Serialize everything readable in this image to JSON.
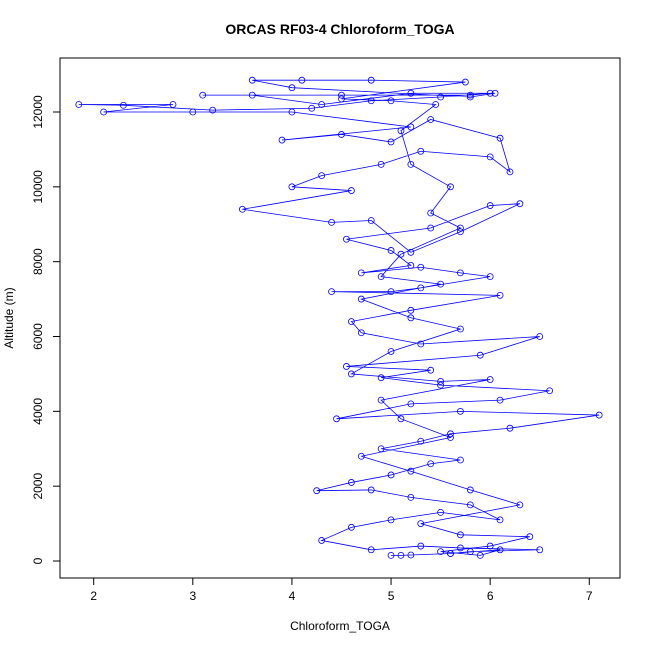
{
  "chart_data": {
    "type": "line",
    "title": "ORCAS RF03-4 Chloroform_TOGA",
    "x_label": "Chloroform_TOGA",
    "y_label": "Altitude (m)",
    "color": "#0000ff",
    "xlim": [
      1.66,
      7.31
    ],
    "ylim": [
      -454,
      13443
    ],
    "xticks": [
      2,
      3,
      4,
      5,
      6,
      7
    ],
    "yticks": [
      0,
      2000,
      4000,
      6000,
      8000,
      10000,
      12000
    ],
    "x": [
      5.0,
      5.1,
      5.2,
      5.6,
      5.8,
      6.5,
      5.7,
      5.3,
      4.8,
      4.3,
      4.6,
      5.0,
      5.5,
      6.1,
      5.8,
      5.2,
      4.8,
      4.25,
      4.6,
      5.0,
      5.4,
      5.7,
      4.9,
      5.3,
      5.6,
      6.2,
      7.1,
      5.7,
      4.45,
      5.2,
      6.1,
      6.6,
      5.5,
      4.9,
      5.4,
      4.55,
      5.9,
      6.5,
      5.3,
      4.7,
      4.6,
      5.2,
      6.1,
      4.4,
      5.0,
      5.3,
      6.0,
      5.7,
      5.3,
      4.7,
      5.2,
      5.0,
      4.55,
      5.4,
      6.0,
      6.3,
      5.7,
      5.2,
      4.8,
      4.4,
      3.5,
      4.6,
      4.0,
      4.3,
      4.9,
      5.3,
      6.0,
      6.2,
      6.1,
      5.4,
      5.0,
      4.5,
      3.9,
      5.2,
      4.0,
      3.0,
      2.1,
      2.8,
      1.85,
      2.3,
      3.2,
      4.2,
      4.8,
      5.5,
      6.0,
      5.8,
      4.5,
      3.1,
      3.6,
      4.3,
      5.2,
      6.05,
      5.8,
      4.0,
      3.6,
      4.1,
      4.8,
      5.75,
      4.5,
      5.0,
      5.45,
      5.1,
      5.2,
      5.6,
      5.4,
      5.7,
      5.1,
      4.9,
      5.5,
      4.7,
      5.2,
      5.7,
      5.0,
      4.6,
      5.5,
      6.0,
      4.9,
      5.1,
      5.6,
      4.7,
      5.2,
      5.8,
      6.3,
      5.3,
      5.7,
      6.4,
      6.0,
      5.5,
      5.9,
      6.1,
      5.6
    ],
    "values": [
      150,
      150,
      160,
      200,
      250,
      300,
      350,
      400,
      300,
      550,
      900,
      1100,
      1300,
      1100,
      1500,
      1700,
      1900,
      1880,
      2100,
      2300,
      2600,
      2700,
      3000,
      3200,
      3400,
      3550,
      3900,
      4000,
      3800,
      4200,
      4300,
      4550,
      4700,
      4900,
      5100,
      5200,
      5500,
      6000,
      5800,
      6100,
      6400,
      6700,
      7100,
      7200,
      7200,
      7300,
      7600,
      7700,
      7850,
      7700,
      7900,
      8300,
      8600,
      8900,
      9500,
      9550,
      8800,
      8250,
      9100,
      9050,
      9400,
      9900,
      10000,
      10300,
      10600,
      10950,
      10800,
      10400,
      11300,
      11800,
      11200,
      11400,
      11250,
      11600,
      12000,
      12000,
      12000,
      12200,
      12200,
      12180,
      12050,
      12100,
      12300,
      12400,
      12500,
      12450,
      12450,
      12450,
      12450,
      12200,
      12500,
      12500,
      12400,
      12650,
      12850,
      12850,
      12850,
      12800,
      12350,
      12300,
      12200,
      11500,
      10600,
      10000,
      9300,
      8900,
      8200,
      7600,
      7400,
      7000,
      6500,
      6200,
      5600,
      5000,
      4800,
      4850,
      4300,
      3800,
      3300,
      2800,
      2400,
      1900,
      1500,
      1000,
      700,
      650,
      400,
      250,
      150,
      300,
      200
    ]
  }
}
